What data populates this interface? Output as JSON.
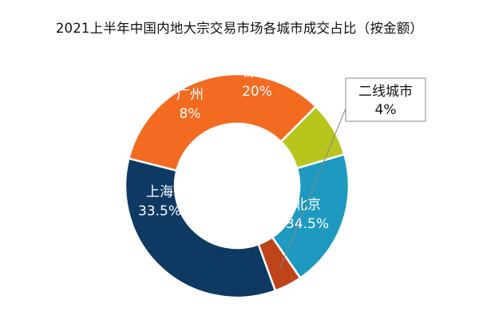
{
  "chart_data": {
    "type": "pie",
    "title": "2021上半年中国内地大宗交易市场各城市成交占比（按金额）",
    "categories": [
      "深圳",
      "二线城市",
      "北京",
      "上海",
      "广州"
    ],
    "values": [
      20,
      4,
      34.5,
      33.5,
      8
    ],
    "value_labels": [
      "20%",
      "4%",
      "34.5%",
      "33.5%",
      "8%"
    ],
    "unit": "%",
    "colors": [
      "#1E9AC0",
      "#C0441A",
      "#0E3963",
      "#F26B21",
      "#B7C51D"
    ],
    "legend": "none",
    "style": "donut"
  }
}
